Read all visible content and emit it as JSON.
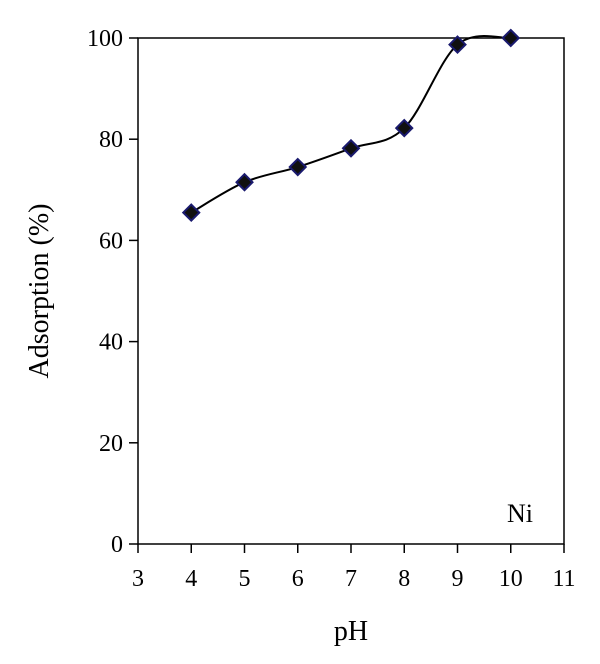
{
  "chart_data": {
    "type": "scatter",
    "xlabel": "pH",
    "ylabel": "Adsorption (%)",
    "xlim": [
      3,
      11
    ],
    "ylim": [
      0,
      100
    ],
    "x_ticks": [
      3,
      4,
      5,
      6,
      7,
      8,
      9,
      10,
      11
    ],
    "y_ticks": [
      0,
      20,
      40,
      60,
      80,
      100
    ],
    "grid": false,
    "legend": "none",
    "annotation": "Ni",
    "annotation_position": "bottom-right",
    "marker": "diamond",
    "line": "smoothed",
    "colors": {
      "line": "#000000",
      "marker_edge": "#1a1a6e",
      "marker_fill": "#101010",
      "axis": "#000000"
    },
    "series": [
      {
        "x": [
          4,
          5,
          6,
          7,
          8,
          9,
          10
        ],
        "y": [
          65.5,
          71.5,
          74.5,
          78.2,
          82.2,
          98.7,
          100
        ]
      }
    ]
  }
}
